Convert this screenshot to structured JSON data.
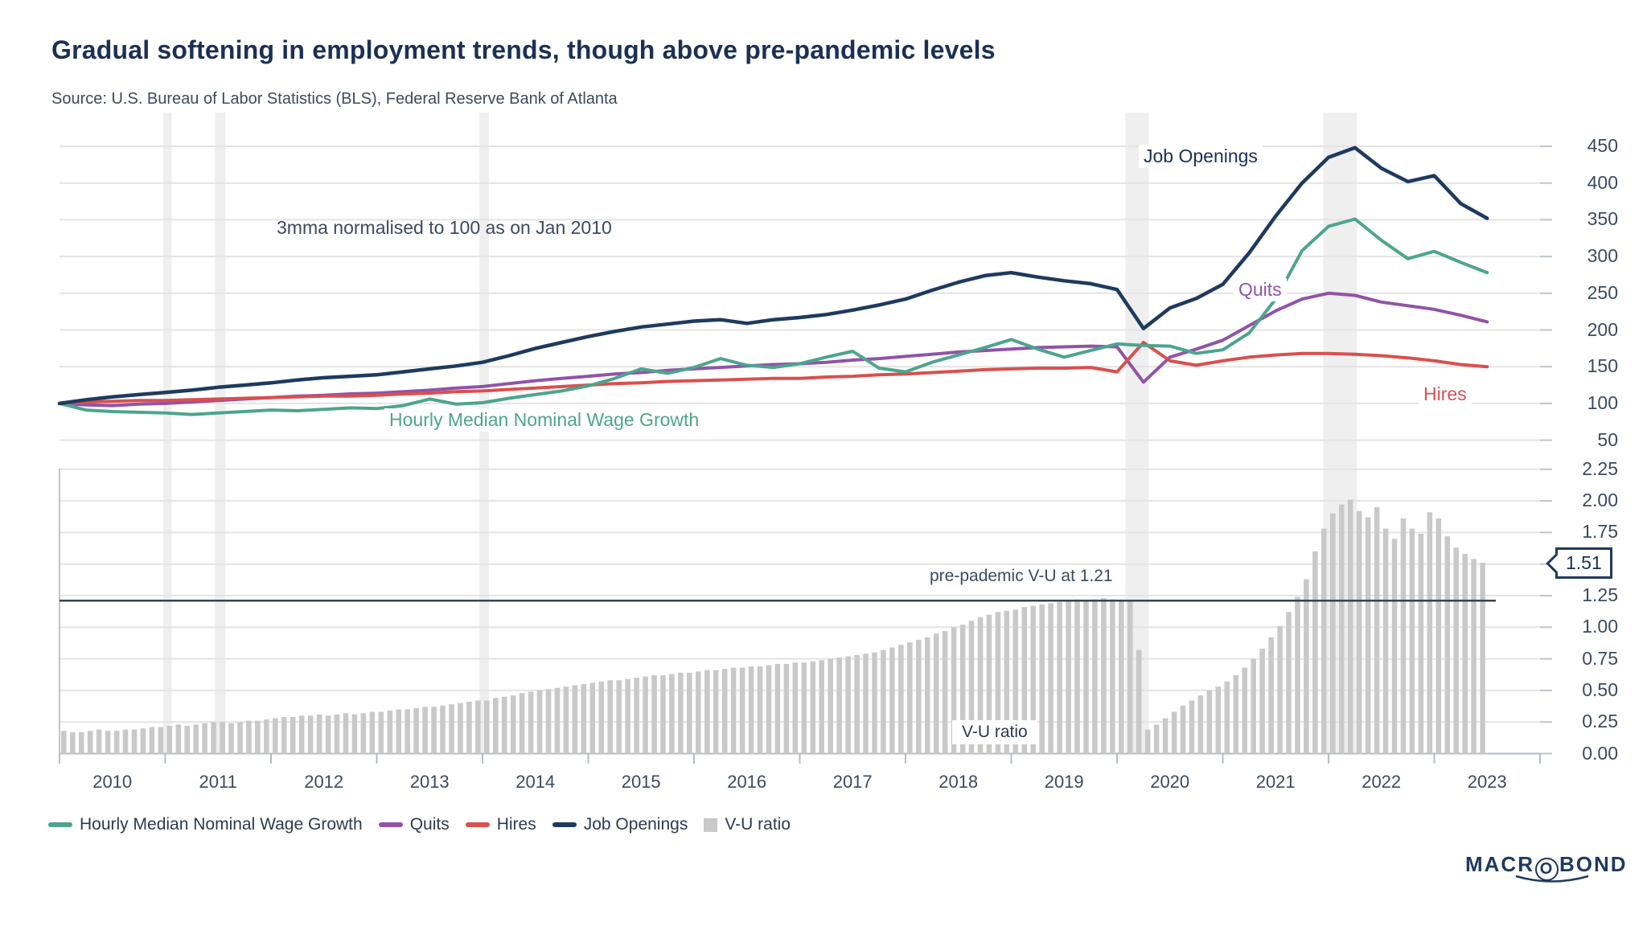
{
  "header": {
    "title": "Gradual softening in employment trends, though above pre-pandemic levels",
    "source": "Source: U.S. Bureau of Labor Statistics (BLS), Federal Reserve Bank of Atlanta"
  },
  "annotations": {
    "note": "3mma normalised to 100 as on Jan 2010",
    "job_openings": "Job Openings",
    "quits": "Quits",
    "hires": "Hires",
    "wage": "Hourly Median Nominal Wage Growth",
    "pre_pandemic": "pre-pademic V-U at 1.21",
    "vu_ratio": "V-U ratio"
  },
  "colors": {
    "navy": "#1e3a5f",
    "teal": "#4ca58c",
    "purple": "#9153a8",
    "red": "#d9504f",
    "bar_gray": "#c9c9c9",
    "band": "#efefef",
    "grid": "#e4e4e4",
    "axis": "#bfc5cc",
    "dark_line": "#3a4350"
  },
  "axes": {
    "years": [
      "2010",
      "2011",
      "2012",
      "2013",
      "2014",
      "2015",
      "2016",
      "2017",
      "2018",
      "2019",
      "2020",
      "2021",
      "2022",
      "2023"
    ]
  },
  "highlight_bands": [
    [
      2010.98,
      2011.06
    ],
    [
      2011.47,
      2011.57
    ],
    [
      2013.97,
      2014.06
    ],
    [
      2020.08,
      2020.3
    ],
    [
      2021.95,
      2022.27
    ]
  ],
  "chart_data": [
    {
      "type": "line",
      "note": "3mma normalised to 100 as on Jan 2010",
      "x_start": 2010,
      "x_step": 0.25,
      "ylim": [
        50,
        450
      ],
      "yticks": [
        {
          "v": 450,
          "label": "450"
        },
        {
          "v": 400,
          "label": "400"
        },
        {
          "v": 350,
          "label": "350"
        },
        {
          "v": 300,
          "label": "300"
        },
        {
          "v": 250,
          "label": "250"
        },
        {
          "v": 200,
          "label": "200"
        },
        {
          "v": 150,
          "label": "150"
        },
        {
          "v": 100,
          "label": "100"
        },
        {
          "v": 50,
          "label": "50"
        }
      ],
      "series": [
        {
          "name": "Hourly Median Nominal Wage Growth",
          "color_key": "teal",
          "width": 4,
          "values": [
            100,
            91,
            89,
            88,
            87,
            85,
            87,
            89,
            91,
            90,
            92,
            94,
            93,
            97,
            106,
            99,
            101,
            107,
            112,
            117,
            124,
            134,
            147,
            141,
            149,
            161,
            152,
            149,
            154,
            163,
            171,
            148,
            143,
            156,
            166,
            176,
            187,
            174,
            163,
            172,
            181,
            179,
            178,
            168,
            173,
            196,
            242,
            308,
            341,
            351,
            322,
            297,
            307,
            292,
            278
          ]
        },
        {
          "name": "Quits",
          "color_key": "purple",
          "width": 4,
          "values": [
            100,
            98,
            97,
            99,
            100,
            102,
            104,
            106,
            108,
            110,
            111,
            113,
            114,
            116,
            118,
            121,
            123,
            127,
            131,
            134,
            137,
            140,
            142,
            145,
            147,
            149,
            151,
            153,
            154,
            156,
            159,
            161,
            164,
            167,
            170,
            172,
            174,
            176,
            177,
            178,
            177,
            129,
            163,
            174,
            186,
            206,
            226,
            242,
            250,
            247,
            238,
            233,
            228,
            220,
            211
          ]
        },
        {
          "name": "Hires",
          "color_key": "red",
          "width": 4,
          "values": [
            100,
            102,
            103,
            104,
            104,
            105,
            106,
            107,
            108,
            109,
            110,
            110,
            111,
            113,
            114,
            116,
            117,
            119,
            121,
            123,
            125,
            127,
            128,
            130,
            131,
            132,
            133,
            134,
            134,
            136,
            137,
            139,
            140,
            142,
            144,
            146,
            147,
            148,
            148,
            149,
            143,
            183,
            158,
            152,
            158,
            163,
            166,
            168,
            168,
            167,
            165,
            162,
            158,
            153,
            150
          ]
        },
        {
          "name": "Job Openings",
          "color_key": "navy",
          "width": 4.5,
          "values": [
            100,
            105,
            109,
            112,
            115,
            118,
            122,
            125,
            128,
            132,
            135,
            137,
            139,
            143,
            147,
            151,
            156,
            165,
            175,
            183,
            191,
            198,
            204,
            208,
            212,
            214,
            209,
            214,
            217,
            221,
            227,
            234,
            242,
            254,
            265,
            274,
            278,
            272,
            267,
            263,
            255,
            202,
            230,
            243,
            262,
            305,
            355,
            400,
            435,
            448,
            420,
            402,
            410,
            372,
            352
          ]
        }
      ]
    },
    {
      "type": "bar",
      "name": "V-U ratio",
      "x_start": 2010,
      "x_step_months": 1,
      "ylim": [
        0,
        2.25
      ],
      "yticks": [
        {
          "v": 2.25,
          "label": "2.25"
        },
        {
          "v": 2.0,
          "label": "2.00"
        },
        {
          "v": 1.75,
          "label": "1.75"
        },
        {
          "v": 1.25,
          "label": "1.25"
        },
        {
          "v": 1.0,
          "label": "1.00"
        },
        {
          "v": 0.75,
          "label": "0.75"
        },
        {
          "v": 0.5,
          "label": "0.50"
        },
        {
          "v": 0.25,
          "label": "0.25"
        },
        {
          "v": 0,
          "label": "0.00"
        }
      ],
      "extra_grid": [
        1.5
      ],
      "reference_line": {
        "value": 1.21,
        "label": "pre-pademic V-U at 1.21"
      },
      "latest_marker": {
        "value": 1.51,
        "label": "1.51"
      },
      "values": [
        0.18,
        0.17,
        0.17,
        0.18,
        0.19,
        0.18,
        0.18,
        0.19,
        0.19,
        0.2,
        0.21,
        0.21,
        0.22,
        0.23,
        0.22,
        0.23,
        0.24,
        0.25,
        0.25,
        0.24,
        0.25,
        0.26,
        0.26,
        0.27,
        0.28,
        0.29,
        0.29,
        0.3,
        0.3,
        0.31,
        0.3,
        0.31,
        0.32,
        0.31,
        0.32,
        0.33,
        0.33,
        0.34,
        0.35,
        0.35,
        0.36,
        0.37,
        0.37,
        0.38,
        0.39,
        0.4,
        0.41,
        0.42,
        0.42,
        0.44,
        0.45,
        0.46,
        0.48,
        0.49,
        0.5,
        0.51,
        0.52,
        0.53,
        0.54,
        0.55,
        0.56,
        0.57,
        0.58,
        0.58,
        0.59,
        0.6,
        0.61,
        0.62,
        0.62,
        0.63,
        0.64,
        0.64,
        0.65,
        0.66,
        0.66,
        0.67,
        0.68,
        0.68,
        0.69,
        0.69,
        0.7,
        0.71,
        0.71,
        0.72,
        0.72,
        0.73,
        0.74,
        0.75,
        0.76,
        0.77,
        0.78,
        0.79,
        0.8,
        0.82,
        0.84,
        0.86,
        0.88,
        0.9,
        0.92,
        0.95,
        0.97,
        1.0,
        1.02,
        1.05,
        1.08,
        1.1,
        1.12,
        1.13,
        1.14,
        1.16,
        1.17,
        1.18,
        1.19,
        1.2,
        1.21,
        1.22,
        1.21,
        1.22,
        1.23,
        1.22,
        1.21,
        1.21,
        0.82,
        0.19,
        0.23,
        0.28,
        0.33,
        0.38,
        0.42,
        0.46,
        0.5,
        0.53,
        0.57,
        0.62,
        0.68,
        0.75,
        0.83,
        0.92,
        1.01,
        1.12,
        1.24,
        1.38,
        1.6,
        1.78,
        1.9,
        1.97,
        2.01,
        1.92,
        1.87,
        1.95,
        1.78,
        1.7,
        1.86,
        1.78,
        1.74,
        1.91,
        1.86,
        1.72,
        1.63,
        1.58,
        1.54,
        1.51
      ]
    }
  ],
  "legend": {
    "items": [
      {
        "label": "Hourly Median Nominal Wage Growth",
        "color_key": "teal",
        "shape": "line"
      },
      {
        "label": "Quits",
        "color_key": "purple",
        "shape": "line"
      },
      {
        "label": "Hires",
        "color_key": "red",
        "shape": "line"
      },
      {
        "label": "Job Openings",
        "color_key": "navy",
        "shape": "line"
      },
      {
        "label": "V-U ratio",
        "color_key": "bar_gray",
        "shape": "square"
      }
    ]
  },
  "logo": {
    "left": "MACR",
    "o": "O",
    "right": "BOND"
  }
}
